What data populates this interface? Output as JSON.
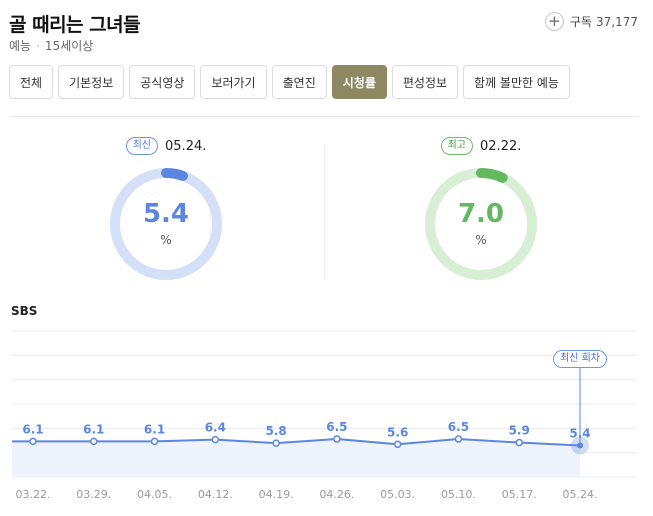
{
  "program": {
    "title": "골 때리는 그녀들",
    "genre": "예능",
    "rating": "15세이상"
  },
  "subscribe": {
    "icon": "plus-icon",
    "label": "구독",
    "count": "37,177"
  },
  "tabs": [
    {
      "label": "전체",
      "active": false
    },
    {
      "label": "기본정보",
      "active": false
    },
    {
      "label": "공식영상",
      "active": false
    },
    {
      "label": "보러가기",
      "active": false
    },
    {
      "label": "출연진",
      "active": false
    },
    {
      "label": "시청률",
      "active": true
    },
    {
      "label": "편성정보",
      "active": false
    },
    {
      "label": "함께 볼만한 예능",
      "active": false
    }
  ],
  "latest": {
    "badge": "최신",
    "date": "05.24.",
    "value": "5.4",
    "unit": "%",
    "ring_fraction": 0.054,
    "color": "#5b87e0",
    "track_color": "#d3e0f8"
  },
  "best": {
    "badge": "최고",
    "date": "02.22.",
    "value": "7.0",
    "unit": "%",
    "ring_fraction": 0.07,
    "color": "#63b95d",
    "track_color": "#d8eed5"
  },
  "network": "SBS",
  "chart_data": {
    "type": "area",
    "categories": [
      "03.22.",
      "03.29.",
      "04.05.",
      "04.12.",
      "04.19.",
      "04.26.",
      "05.03.",
      "05.10.",
      "05.17.",
      "05.24."
    ],
    "series": [
      {
        "values": [
          6.1,
          6.1,
          6.1,
          6.4,
          5.8,
          6.5,
          5.6,
          6.5,
          5.9,
          5.4
        ]
      }
    ],
    "labels": [
      "6.1",
      "6.1",
      "6.1",
      "6.4",
      "5.8",
      "6.5",
      "5.6",
      "6.5",
      "5.9",
      "5.4"
    ],
    "annotation": "최신 회차",
    "color": "#5b87e0",
    "fill": "#eef3fd",
    "ylim": [
      0,
      25
    ],
    "grid": true
  }
}
